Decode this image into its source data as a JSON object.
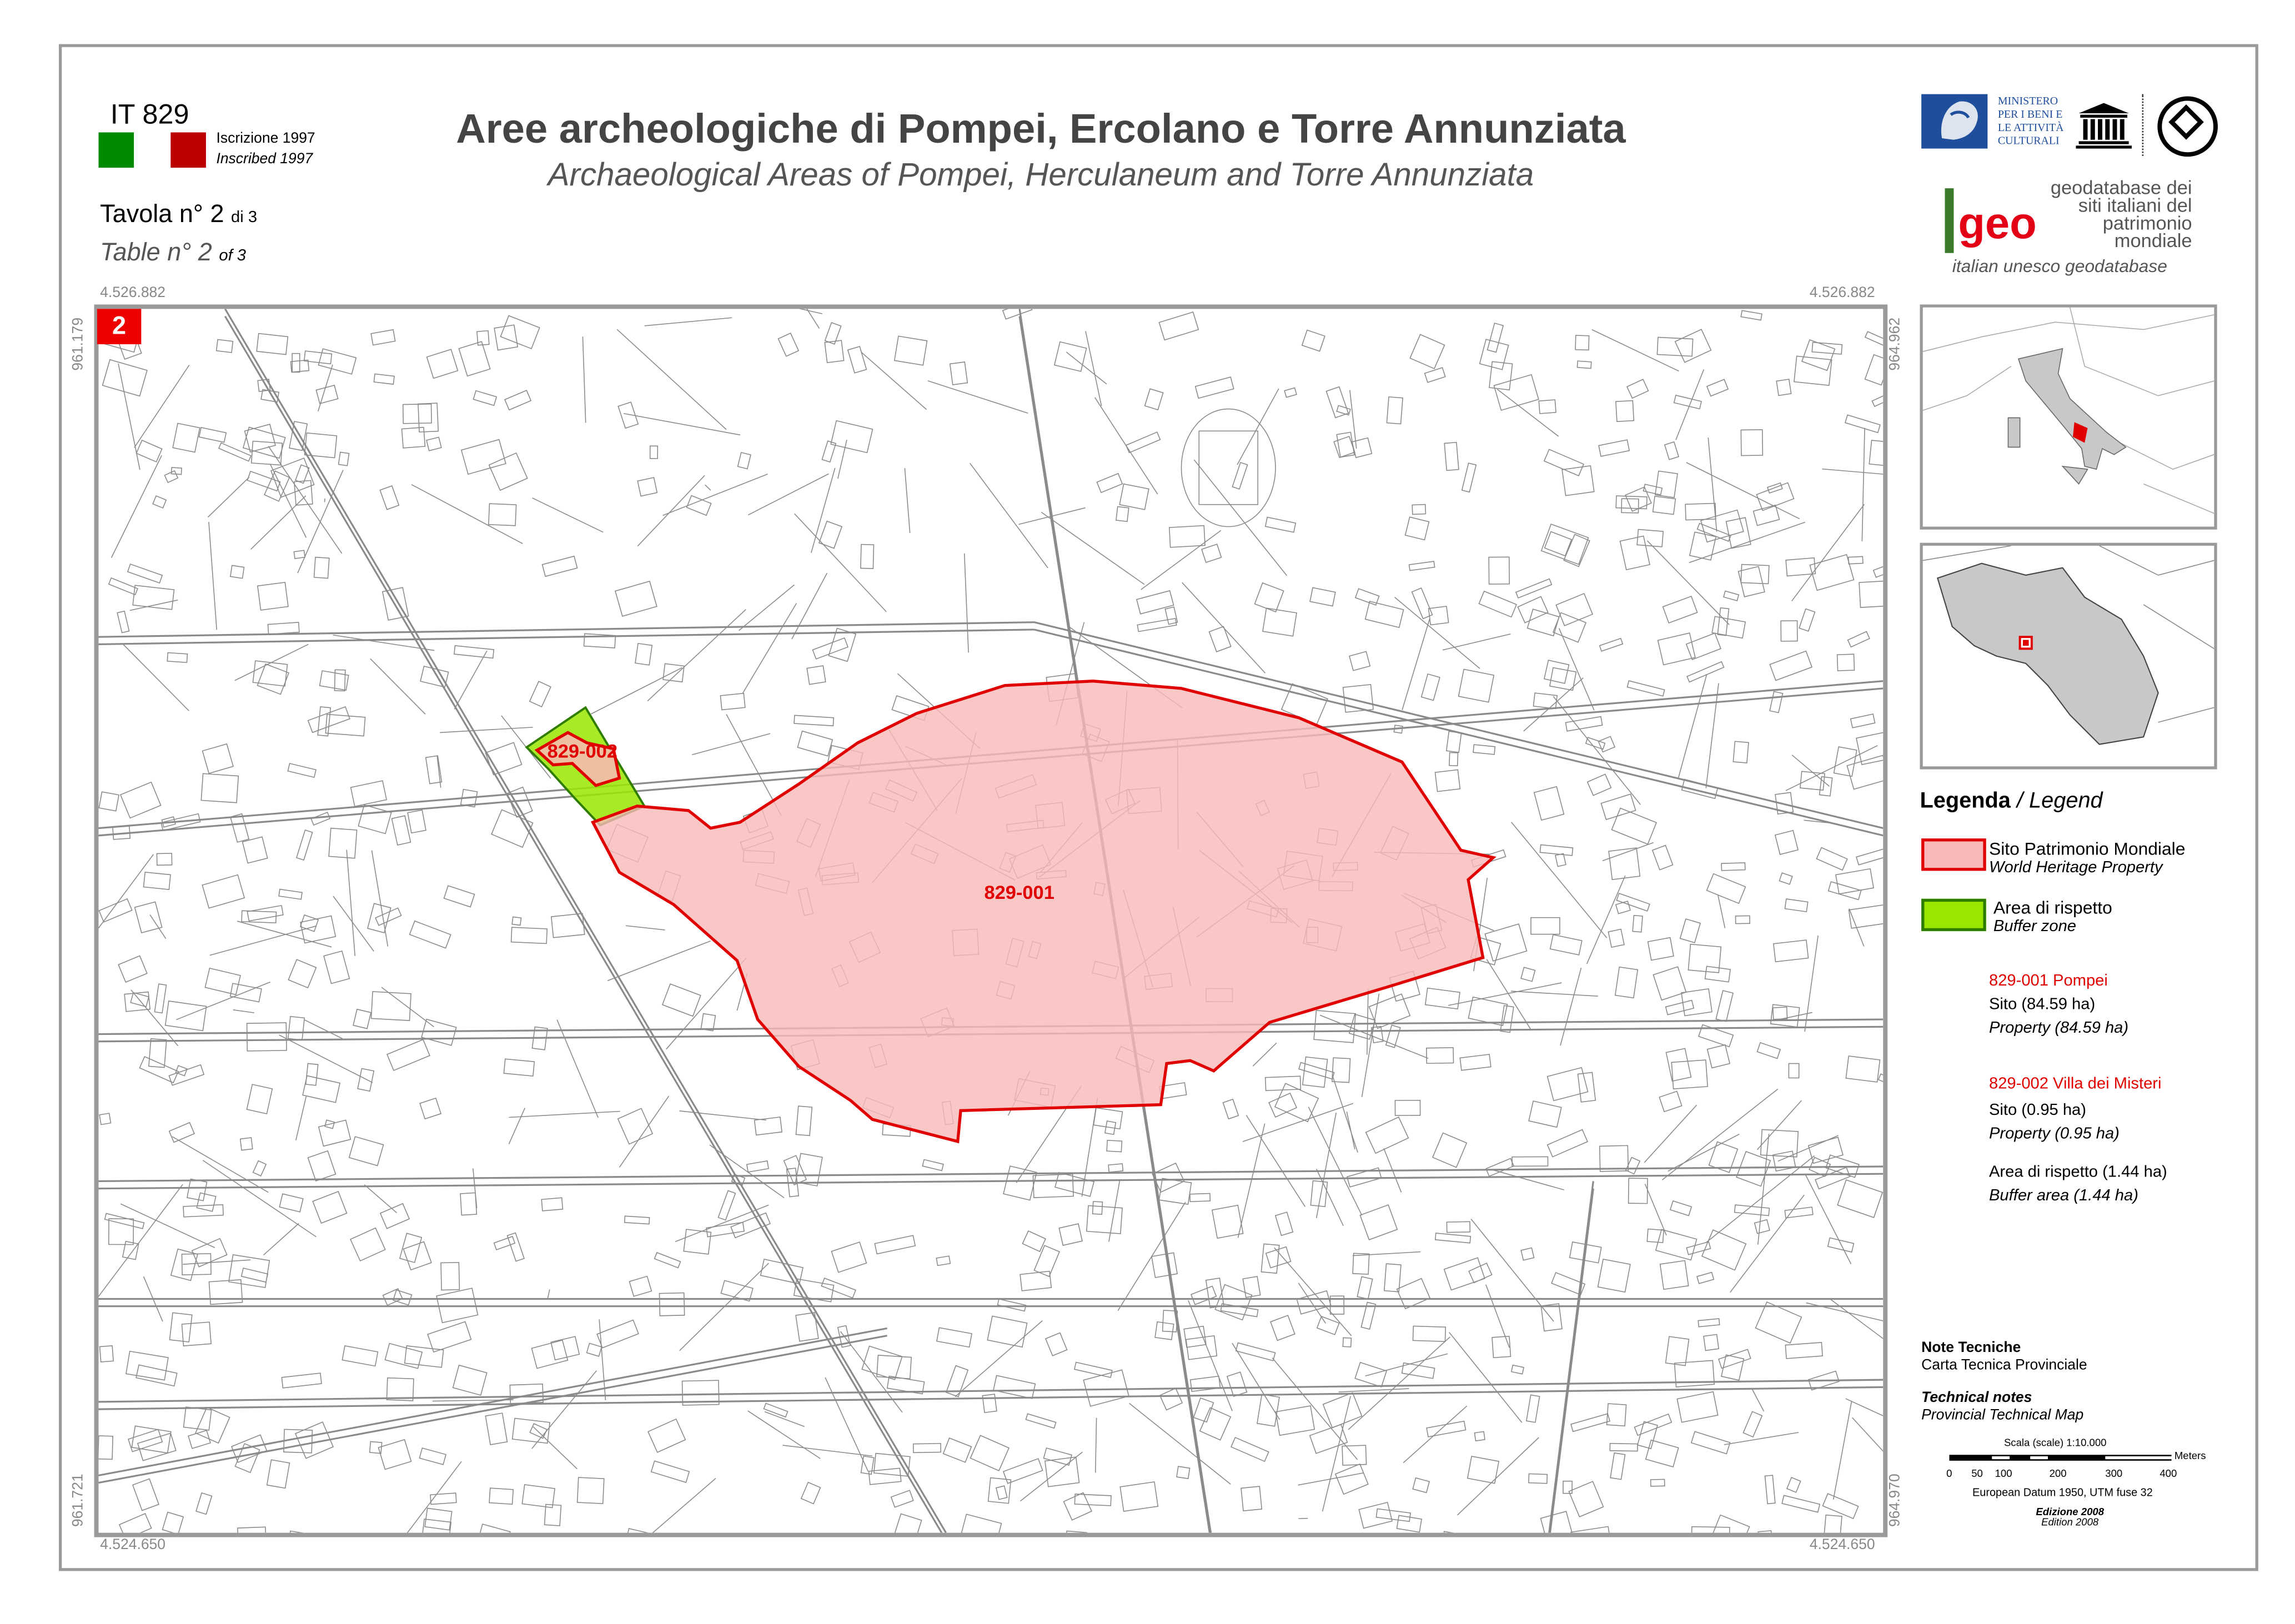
{
  "header": {
    "site_code": "IT 829",
    "inscription_it": "Iscrizione 1997",
    "inscription_en": "Inscribed 1997",
    "inscription_colors": [
      "#008a00",
      "#bb0000"
    ],
    "sheet_it": "Tavola n° 2",
    "sheet_it_of": "di 3",
    "sheet_en": "Table n° 2",
    "sheet_en_of": "of 3",
    "title": "Aree archeologiche di Pompei, Ercolano e Torre Annunziata",
    "subtitle": "Archaeological Areas of Pompei, Herculaneum and Torre Annunziata"
  },
  "logos": {
    "mibac_mark": "MiBAC",
    "mibac_lines": [
      "MINISTERO",
      "PER I BENI E",
      "LE ATTIVITÀ",
      "CULTURALI"
    ],
    "unesco": "UNESCO",
    "whc_ring": "PATRIMOINE MONDIAL · WORLD HERITAGE · PATRIMONIO MONDIALE",
    "geo_mark": "geo",
    "geo_lines": [
      "geodatabase dei",
      "siti italiani del",
      "patrimonio",
      "mondiale"
    ],
    "geo_tagline": "italian unesco geodatabase"
  },
  "map": {
    "sheet_badge": "2",
    "coords": {
      "top_left": "4.526.882",
      "top_right": "4.526.882",
      "bottom_left": "4.524.650",
      "bottom_right": "4.524.650",
      "left_top": "961.179",
      "left_bottom": "961.721",
      "right_top": "964.962",
      "right_bottom": "964.970"
    },
    "labels": {
      "pompei": "829-001",
      "villa": "829-002"
    },
    "colors": {
      "property_fill": "#f9b9b9",
      "property_stroke": "#e00000",
      "buffer_fill": "#99e600",
      "buffer_stroke": "#2e7d00",
      "basemap_lines": "#808080"
    }
  },
  "legend": {
    "title_it": "Legenda",
    "title_en": "/ Legend",
    "items": [
      {
        "it": "Sito Patrimonio Mondiale",
        "en": "World Heritage Property"
      },
      {
        "it": "Area di rispetto",
        "en": "Buffer zone"
      }
    ],
    "components": [
      {
        "name": "829-001 Pompei",
        "site_it": "Sito (84.59 ha)",
        "site_en": "Property (84.59 ha)"
      },
      {
        "name": "829-002 Villa dei Misteri",
        "site_it": "Sito (0.95 ha)",
        "site_en": "Property (0.95 ha)",
        "buffer_it": "Area di rispetto (1.44 ha)",
        "buffer_en": "Buffer area (1.44 ha)"
      }
    ]
  },
  "notes": {
    "title_it": "Note Tecniche",
    "body_it": "Carta Tecnica Provinciale",
    "title_en": "Technical notes",
    "body_en": "Provincial Technical Map",
    "scale_label": "Scala (scale) 1:10.000",
    "scale_ticks": [
      "0",
      "50",
      "100",
      "200",
      "300",
      "400"
    ],
    "scale_unit": "Meters",
    "datum": "European Datum 1950, UTM fuse 32",
    "edition_it": "Edizione 2008",
    "edition_en": "Edition 2008"
  }
}
